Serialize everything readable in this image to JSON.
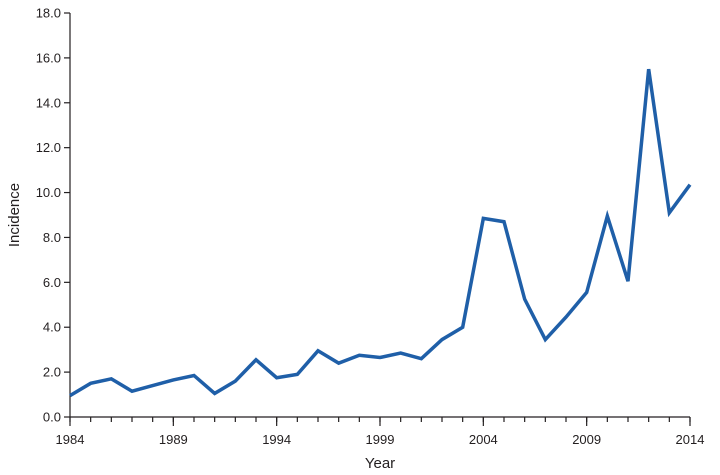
{
  "chart_data": {
    "type": "line",
    "title": "",
    "xlabel": "Year",
    "ylabel": "Incidence",
    "xlim": [
      1984,
      2014
    ],
    "ylim": [
      0,
      18
    ],
    "x_ticks": [
      "1984",
      "1989",
      "1994",
      "1999",
      "2004",
      "2009",
      "2014"
    ],
    "y_ticks": [
      "0.0",
      "2.0",
      "4.0",
      "6.0",
      "8.0",
      "10.0",
      "12.0",
      "14.0",
      "16.0",
      "18.0"
    ],
    "grid": false,
    "legend": "none",
    "series_color": "#1f5fa8",
    "axis_color": "#231f20",
    "series": [
      {
        "x": [
          1984,
          1985,
          1986,
          1987,
          1988,
          1989,
          1990,
          1991,
          1992,
          1993,
          1994,
          1995,
          1996,
          1997,
          1998,
          1999,
          2000,
          2001,
          2002,
          2003,
          2004,
          2005,
          2006,
          2007,
          2008,
          2009,
          2010,
          2011,
          2012,
          2013,
          2014
        ],
        "values": [
          0.95,
          1.5,
          1.7,
          1.15,
          1.4,
          1.65,
          1.85,
          1.05,
          1.6,
          2.55,
          1.75,
          1.9,
          2.95,
          2.4,
          2.75,
          2.65,
          2.85,
          2.6,
          3.45,
          4.0,
          8.85,
          8.7,
          5.25,
          3.45,
          4.45,
          5.55,
          8.95,
          6.05,
          15.5,
          9.1,
          10.35
        ]
      }
    ]
  }
}
